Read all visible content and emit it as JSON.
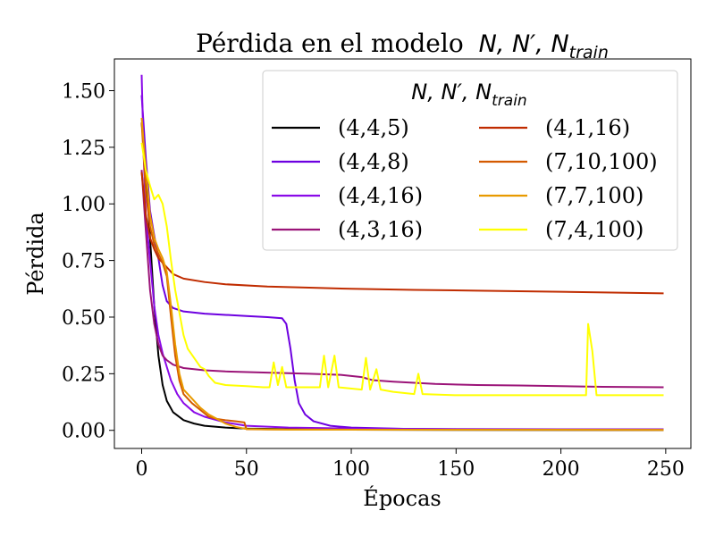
{
  "chart_data": {
    "type": "line",
    "title": "Pérdida en el modelo",
    "title_math": "N, N′, N",
    "title_math_sub": "train",
    "xlabel": "Épocas",
    "ylabel": "Pérdida",
    "xlim": [
      -13,
      262
    ],
    "ylim": [
      -0.08,
      1.64
    ],
    "xticks": [
      0,
      50,
      100,
      150,
      200,
      250
    ],
    "yticks": [
      0.0,
      0.25,
      0.5,
      0.75,
      1.0,
      1.25,
      1.5
    ],
    "xtick_labels": [
      "0",
      "50",
      "100",
      "150",
      "200",
      "250"
    ],
    "ytick_labels": [
      "0.00",
      "0.25",
      "0.50",
      "0.75",
      "1.00",
      "1.25",
      "1.50"
    ],
    "grid": false,
    "legend": {
      "placement": "top-right",
      "title_math": "N, N′, N",
      "title_math_sub": "train",
      "columns": 2
    },
    "series": [
      {
        "name": "(4,4,5)",
        "color": "#000000",
        "points": [
          [
            0,
            1.36
          ],
          [
            2,
            1.15
          ],
          [
            4,
            0.85
          ],
          [
            6,
            0.55
          ],
          [
            8,
            0.33
          ],
          [
            10,
            0.2
          ],
          [
            12,
            0.13
          ],
          [
            15,
            0.08
          ],
          [
            20,
            0.045
          ],
          [
            25,
            0.03
          ],
          [
            30,
            0.02
          ],
          [
            40,
            0.012
          ],
          [
            50,
            0.008
          ],
          [
            75,
            0.005
          ],
          [
            100,
            0.003
          ],
          [
            150,
            0.002
          ],
          [
            249,
            0.001
          ]
        ]
      },
      {
        "name": "(4,4,8)",
        "color": "#6d00e0",
        "points": [
          [
            0,
            1.48
          ],
          [
            2,
            1.2
          ],
          [
            4,
            0.97
          ],
          [
            6,
            0.86
          ],
          [
            8,
            0.76
          ],
          [
            10,
            0.64
          ],
          [
            12,
            0.57
          ],
          [
            15,
            0.54
          ],
          [
            20,
            0.525
          ],
          [
            30,
            0.515
          ],
          [
            40,
            0.51
          ],
          [
            50,
            0.505
          ],
          [
            60,
            0.5
          ],
          [
            67,
            0.495
          ],
          [
            69,
            0.47
          ],
          [
            71,
            0.36
          ],
          [
            73,
            0.22
          ],
          [
            75,
            0.12
          ],
          [
            78,
            0.07
          ],
          [
            82,
            0.04
          ],
          [
            90,
            0.02
          ],
          [
            100,
            0.012
          ],
          [
            125,
            0.007
          ],
          [
            150,
            0.005
          ],
          [
            200,
            0.004
          ],
          [
            249,
            0.003
          ]
        ]
      },
      {
        "name": "(4,4,16)",
        "color": "#8a0ae8",
        "points": [
          [
            0,
            1.57
          ],
          [
            1,
            1.2
          ],
          [
            2,
            0.95
          ],
          [
            4,
            0.75
          ],
          [
            6,
            0.55
          ],
          [
            8,
            0.42
          ],
          [
            10,
            0.34
          ],
          [
            12,
            0.28
          ],
          [
            14,
            0.22
          ],
          [
            17,
            0.16
          ],
          [
            20,
            0.12
          ],
          [
            25,
            0.08
          ],
          [
            30,
            0.06
          ],
          [
            40,
            0.035
          ],
          [
            50,
            0.02
          ],
          [
            70,
            0.012
          ],
          [
            100,
            0.008
          ],
          [
            150,
            0.006
          ],
          [
            200,
            0.005
          ],
          [
            249,
            0.005
          ]
        ]
      },
      {
        "name": "(4,3,16)",
        "color": "#9b1478",
        "points": [
          [
            0,
            1.15
          ],
          [
            2,
            0.88
          ],
          [
            4,
            0.62
          ],
          [
            6,
            0.47
          ],
          [
            8,
            0.38
          ],
          [
            10,
            0.33
          ],
          [
            12,
            0.31
          ],
          [
            15,
            0.29
          ],
          [
            20,
            0.275
          ],
          [
            30,
            0.265
          ],
          [
            40,
            0.26
          ],
          [
            60,
            0.255
          ],
          [
            80,
            0.25
          ],
          [
            95,
            0.245
          ],
          [
            105,
            0.235
          ],
          [
            110,
            0.222
          ],
          [
            120,
            0.215
          ],
          [
            130,
            0.21
          ],
          [
            140,
            0.205
          ],
          [
            160,
            0.2
          ],
          [
            180,
            0.198
          ],
          [
            200,
            0.195
          ],
          [
            220,
            0.192
          ],
          [
            249,
            0.19
          ]
        ]
      },
      {
        "name": "(4,1,16)",
        "color": "#c02c00",
        "points": [
          [
            0,
            1.14
          ],
          [
            2,
            0.95
          ],
          [
            4,
            0.85
          ],
          [
            6,
            0.8
          ],
          [
            8,
            0.76
          ],
          [
            10,
            0.74
          ],
          [
            12,
            0.72
          ],
          [
            15,
            0.69
          ],
          [
            20,
            0.67
          ],
          [
            30,
            0.655
          ],
          [
            40,
            0.645
          ],
          [
            60,
            0.635
          ],
          [
            80,
            0.63
          ],
          [
            100,
            0.625
          ],
          [
            130,
            0.62
          ],
          [
            160,
            0.617
          ],
          [
            200,
            0.612
          ],
          [
            249,
            0.605
          ]
        ]
      },
      {
        "name": "(7,10,100)",
        "color": "#d45a00",
        "points": [
          [
            0,
            1.36
          ],
          [
            2,
            1.05
          ],
          [
            4,
            0.9
          ],
          [
            6,
            0.82
          ],
          [
            8,
            0.78
          ],
          [
            10,
            0.74
          ],
          [
            12,
            0.68
          ],
          [
            14,
            0.5
          ],
          [
            16,
            0.33
          ],
          [
            18,
            0.22
          ],
          [
            20,
            0.16
          ],
          [
            24,
            0.12
          ],
          [
            28,
            0.09
          ],
          [
            32,
            0.06
          ],
          [
            36,
            0.05
          ],
          [
            40,
            0.045
          ],
          [
            45,
            0.04
          ],
          [
            49,
            0.035
          ],
          [
            50,
            0.005
          ],
          [
            60,
            0.004
          ],
          [
            100,
            0.003
          ],
          [
            249,
            0.002
          ]
        ]
      },
      {
        "name": "(7,7,100)",
        "color": "#e89a00",
        "points": [
          [
            0,
            1.38
          ],
          [
            2,
            1.15
          ],
          [
            4,
            0.95
          ],
          [
            6,
            0.85
          ],
          [
            8,
            0.8
          ],
          [
            10,
            0.76
          ],
          [
            12,
            0.7
          ],
          [
            14,
            0.55
          ],
          [
            16,
            0.38
          ],
          [
            18,
            0.25
          ],
          [
            20,
            0.18
          ],
          [
            24,
            0.14
          ],
          [
            28,
            0.1
          ],
          [
            32,
            0.07
          ],
          [
            36,
            0.05
          ],
          [
            40,
            0.03
          ],
          [
            45,
            0.015
          ],
          [
            50,
            0.006
          ],
          [
            70,
            0.003
          ],
          [
            249,
            0.002
          ]
        ]
      },
      {
        "name": "(7,4,100)",
        "color": "#ffff00",
        "points": [
          [
            0,
            1.27
          ],
          [
            2,
            1.15
          ],
          [
            4,
            1.08
          ],
          [
            6,
            1.02
          ],
          [
            8,
            1.04
          ],
          [
            10,
            1.0
          ],
          [
            12,
            0.9
          ],
          [
            14,
            0.75
          ],
          [
            16,
            0.62
          ],
          [
            18,
            0.52
          ],
          [
            20,
            0.42
          ],
          [
            22,
            0.36
          ],
          [
            25,
            0.32
          ],
          [
            28,
            0.28
          ],
          [
            30,
            0.27
          ],
          [
            32,
            0.24
          ],
          [
            35,
            0.21
          ],
          [
            40,
            0.2
          ],
          [
            50,
            0.195
          ],
          [
            58,
            0.19
          ],
          [
            61,
            0.19
          ],
          [
            63,
            0.3
          ],
          [
            65,
            0.2
          ],
          [
            67,
            0.28
          ],
          [
            69,
            0.19
          ],
          [
            80,
            0.19
          ],
          [
            85,
            0.19
          ],
          [
            87,
            0.33
          ],
          [
            89,
            0.19
          ],
          [
            92,
            0.33
          ],
          [
            94,
            0.19
          ],
          [
            105,
            0.18
          ],
          [
            107,
            0.32
          ],
          [
            109,
            0.18
          ],
          [
            112,
            0.27
          ],
          [
            114,
            0.18
          ],
          [
            120,
            0.17
          ],
          [
            130,
            0.16
          ],
          [
            132,
            0.25
          ],
          [
            134,
            0.16
          ],
          [
            150,
            0.155
          ],
          [
            180,
            0.155
          ],
          [
            210,
            0.155
          ],
          [
            212,
            0.155
          ],
          [
            213,
            0.47
          ],
          [
            215,
            0.35
          ],
          [
            217,
            0.155
          ],
          [
            230,
            0.155
          ],
          [
            249,
            0.155
          ]
        ]
      }
    ]
  }
}
